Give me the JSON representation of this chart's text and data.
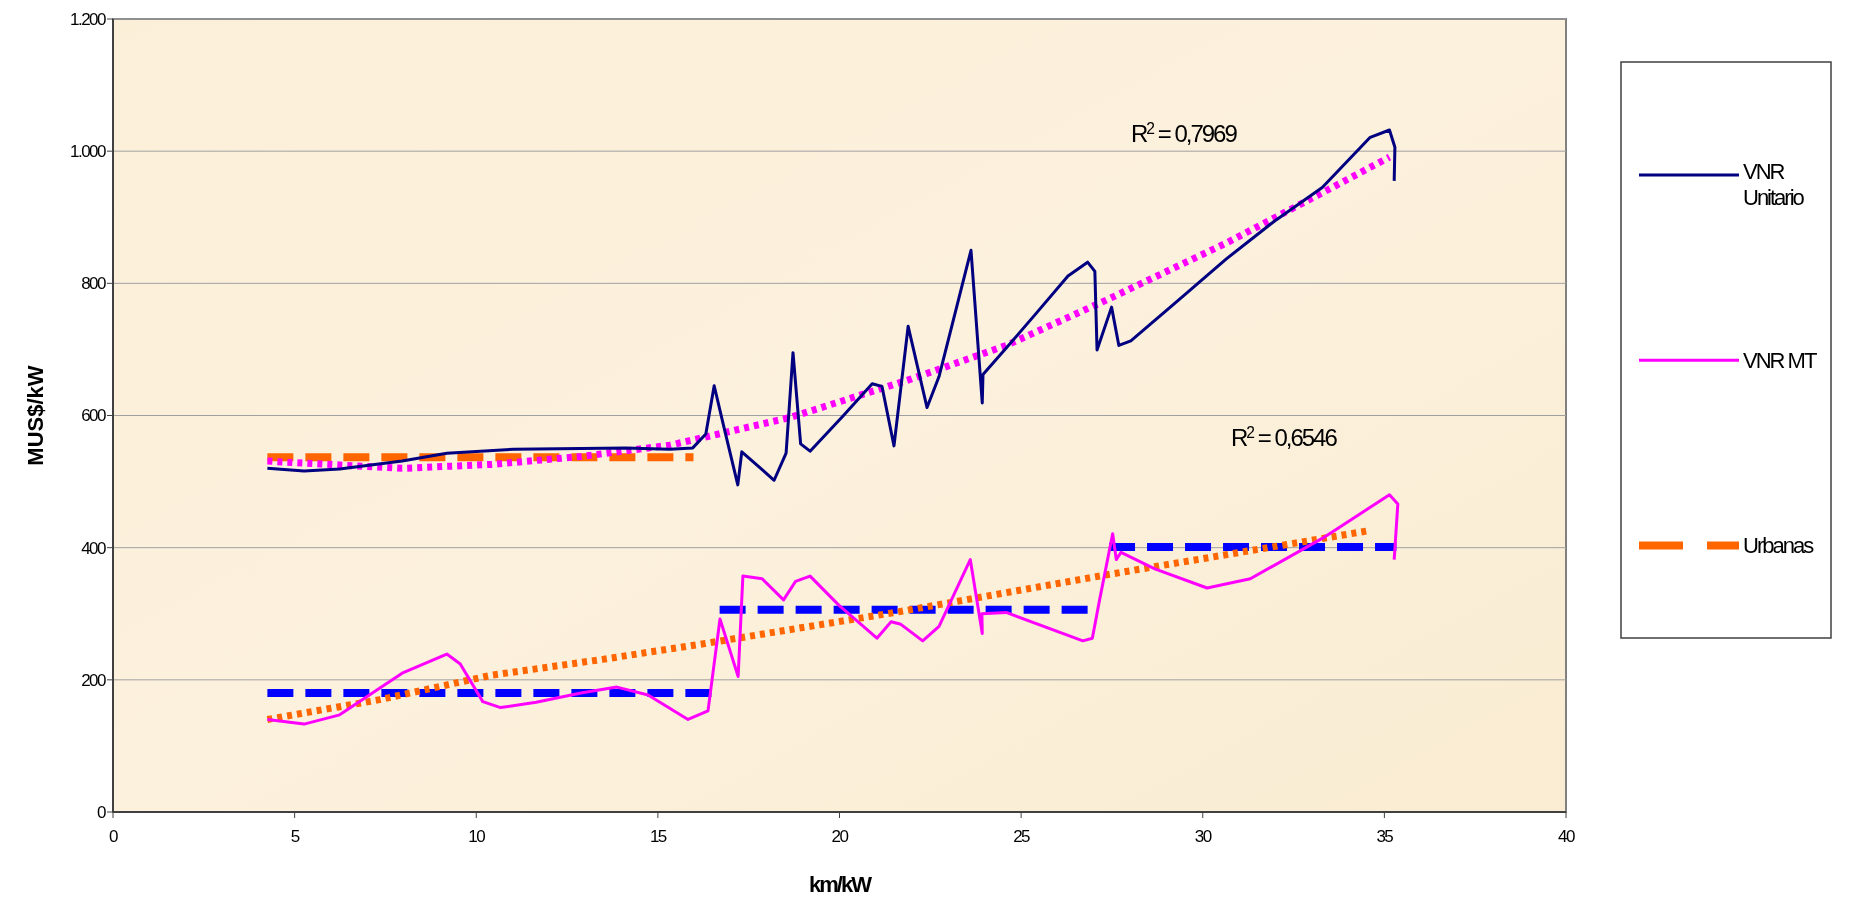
{
  "chart_data": {
    "type": "line",
    "xlabel": "km/kW",
    "ylabel": "MUS$/kW",
    "xlim": [
      0,
      40
    ],
    "xticks": [
      0,
      5,
      10,
      15,
      20,
      25,
      30,
      35,
      40
    ],
    "ylim": [
      0,
      1200
    ],
    "yticks": [
      0,
      200,
      400,
      600,
      800,
      {
        "value": 1000,
        "label": "1.000"
      },
      {
        "value": 1200,
        "label": "1.200"
      }
    ],
    "grid": "y",
    "legend": "right",
    "marker": "none",
    "series": [
      {
        "name": "VNR Unitario",
        "color": "#000080",
        "line_style": "solid",
        "x": [
          4.25,
          5.26,
          6.24,
          7.96,
          9.19,
          11.03,
          12.88,
          14.11,
          15.33,
          15.96,
          16.32,
          16.55,
          16.82,
          17.2,
          17.31,
          18.2,
          18.53,
          18.72,
          18.93,
          19.19,
          20.11,
          20.9,
          21.17,
          21.5,
          21.89,
          22.41,
          22.74,
          23.62,
          23.93,
          23.95,
          24.59,
          25.39,
          26.29,
          26.83,
          27.03,
          27.09,
          27.49,
          27.69,
          28.02,
          29.34,
          30.65,
          31.97,
          33.29,
          34.61,
          35.14,
          35.29,
          35.27
        ],
        "values": [
          520,
          516,
          519,
          531,
          543,
          549,
          550,
          551,
          549,
          551,
          572,
          645,
          582,
          495,
          545,
          502,
          543,
          695,
          557,
          546,
          600,
          648,
          644,
          554,
          735,
          612,
          659,
          850,
          619,
          662,
          702,
          753,
          811,
          832,
          818,
          699,
          764,
          706,
          713,
          775,
          837,
          894,
          945,
          1021,
          1032,
          1006,
          955
        ]
      },
      {
        "name": "VNR MT",
        "color": "#ff00ff",
        "line_style": "solid",
        "x": [
          4.25,
          5.26,
          6.24,
          7.96,
          9.19,
          9.56,
          10.18,
          10.67,
          11.65,
          12.88,
          13.87,
          14.73,
          15.83,
          16.38,
          16.71,
          17.21,
          17.34,
          17.87,
          18.46,
          18.79,
          19.19,
          19.98,
          21.03,
          21.42,
          21.69,
          22.29,
          22.74,
          23.6,
          23.93,
          23.92,
          24.59,
          26.7,
          26.96,
          27.16,
          27.52,
          27.62,
          27.75,
          28.68,
          30.12,
          31.31,
          33.29,
          35.14,
          35.37,
          35.27
        ],
        "values": [
          140,
          133,
          147,
          210,
          239,
          224,
          167,
          158,
          166,
          180,
          189,
          177,
          140,
          153,
          292,
          205,
          357,
          353,
          321,
          349,
          357,
          313,
          263,
          288,
          284,
          259,
          281,
          382,
          270,
          300,
          302,
          259,
          263,
          321,
          421,
          382,
          393,
          368,
          339,
          353,
          414,
          480,
          466,
          382
        ]
      },
      {
        "name": "Urbanas",
        "color": "#ff6600",
        "line_style": "dashed",
        "x": [
          4.25,
          15.98
        ],
        "values": [
          537,
          537
        ]
      },
      {
        "color": "#0000ff",
        "line_style": "dashed",
        "x": [
          4.25,
          16.63,
          16.66,
          16.7,
          27.16,
          27.3,
          27.42,
          35.33
        ],
        "values": [
          180,
          180,
          null,
          306,
          306,
          null,
          401,
          401
        ]
      },
      {
        "color": "#ff00ff",
        "line_style": "dotted",
        "x": [
          4.25,
          7.96,
          10.42,
          12.88,
          15.33,
          18.64,
          21.96,
          24.59,
          27.36,
          30.65,
          33.29,
          35.14
        ],
        "values": [
          531,
          520,
          526,
          538,
          555,
          597,
          655,
          706,
          775,
          861,
          937,
          991
        ]
      },
      {
        "color": "#ff6600",
        "line_style": "dotted",
        "x": [
          4.25,
          7.34,
          10.42,
          13.48,
          16.3,
          21.42,
          27.36,
          34.61
        ],
        "values": [
          140,
          170,
          207,
          231,
          255,
          301,
          359,
          426
        ]
      }
    ],
    "annotations": [
      "R$^{2}$ = 0,7969",
      "R$^{2}$ = 0,6546"
    ]
  }
}
